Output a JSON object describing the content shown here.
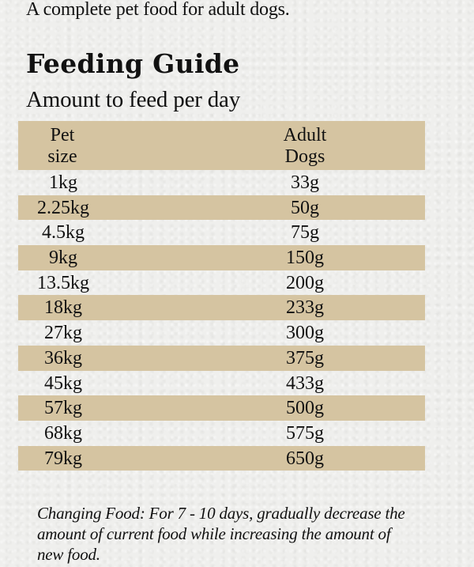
{
  "intro": "A complete pet food for adult dogs.",
  "heading": "Feeding Guide",
  "subheading": "Amount to feed per day",
  "table": {
    "header": {
      "col1_line1": "Pet",
      "col1_line2": "size",
      "col2_line1": "Adult",
      "col2_line2": "Dogs"
    },
    "rows": [
      {
        "size": "1kg",
        "amount": "33g"
      },
      {
        "size": "2.25kg",
        "amount": "50g"
      },
      {
        "size": "4.5kg",
        "amount": "75g"
      },
      {
        "size": "9kg",
        "amount": "150g"
      },
      {
        "size": "13.5kg",
        "amount": "200g"
      },
      {
        "size": "18kg",
        "amount": "233g"
      },
      {
        "size": "27kg",
        "amount": "300g"
      },
      {
        "size": "36kg",
        "amount": "375g"
      },
      {
        "size": "45kg",
        "amount": "433g"
      },
      {
        "size": "57kg",
        "amount": "500g"
      },
      {
        "size": "68kg",
        "amount": "575g"
      },
      {
        "size": "79kg",
        "amount": "650g"
      }
    ],
    "band_color": "#d5c4a1"
  },
  "note": "Changing Food: For 7 - 10 days, gradually decrease the amount of current food while increasing the amount of new food."
}
